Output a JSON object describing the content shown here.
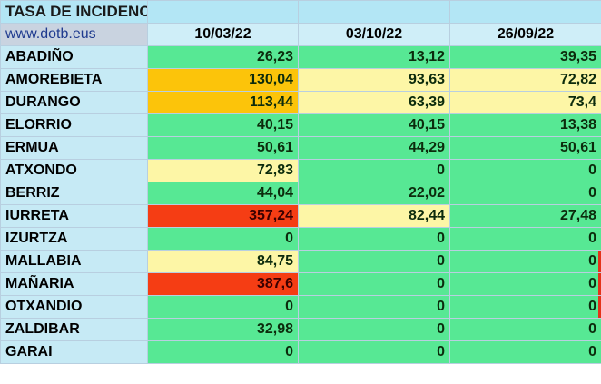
{
  "title": "TASA DE INCIDENCIA",
  "website": "www.dotb.eus",
  "columns": [
    "10/03/22",
    "03/10/22",
    "26/09/22"
  ],
  "rows": [
    {
      "name": "ABADIÑO",
      "values": [
        "26,23",
        "13,12",
        "39,35"
      ]
    },
    {
      "name": "AMOREBIETA",
      "values": [
        "130,04",
        "93,63",
        "72,82"
      ]
    },
    {
      "name": "DURANGO",
      "values": [
        "113,44",
        "63,39",
        "73,4"
      ]
    },
    {
      "name": "ELORRIO",
      "values": [
        "40,15",
        "40,15",
        "13,38"
      ]
    },
    {
      "name": "ERMUA",
      "values": [
        "50,61",
        "44,29",
        "50,61"
      ]
    },
    {
      "name": "ATXONDO",
      "values": [
        "72,83",
        "0",
        "0"
      ]
    },
    {
      "name": "BERRIZ",
      "values": [
        "44,04",
        "22,02",
        "0"
      ]
    },
    {
      "name": "IURRETA",
      "values": [
        "357,24",
        "82,44",
        "27,48"
      ]
    },
    {
      "name": "IZURTZA",
      "values": [
        "0",
        "0",
        "0"
      ]
    },
    {
      "name": "MALLABIA",
      "values": [
        "84,75",
        "0",
        "0"
      ]
    },
    {
      "name": "MAÑARIA",
      "values": [
        "387,6",
        "0",
        "0"
      ]
    },
    {
      "name": "OTXANDIO",
      "values": [
        "0",
        "0",
        "0"
      ]
    },
    {
      "name": "ZALDIBAR",
      "values": [
        "32,98",
        "0",
        "0"
      ]
    },
    {
      "name": "GARAI",
      "values": [
        "0",
        "0",
        "0"
      ]
    }
  ],
  "colors": {
    "green": "#57e894",
    "yellow": "#fdf6a6",
    "orange": "#fcc40a",
    "red": "#f53d14",
    "header": "#b3e6f5",
    "name_cell": "#c6eaf5"
  }
}
